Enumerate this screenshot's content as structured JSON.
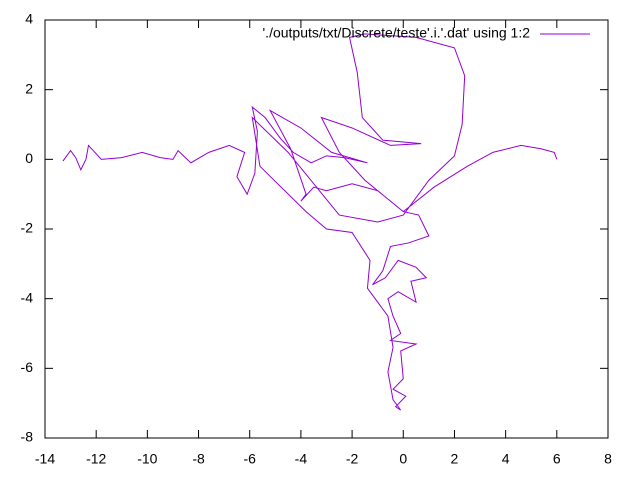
{
  "chart_data": {
    "type": "line",
    "x": [
      -13.3,
      -13,
      -12.8,
      -12.6,
      -12.4,
      -12.3,
      -11.8,
      -11,
      -10.2,
      -9.5,
      -9,
      -8.8,
      -8.3,
      -7.6,
      -6.8,
      -6.2,
      -6.5,
      -6.1,
      -5.8,
      -5.7,
      -5.9,
      -5.4,
      -4.8,
      -4.3,
      -3.6,
      -3,
      -2.3,
      -1.4,
      -2.8,
      -4,
      -5.2,
      -4.4,
      -3.8,
      -4,
      -3.5,
      -3,
      -2,
      -1,
      0,
      0.6,
      1,
      0.2,
      -0.5,
      -0.8,
      -1.2,
      -0.7,
      -0.2,
      0.5,
      0.9,
      0.3,
      0.5,
      -0.2,
      -0.6,
      -0.4,
      -0.1,
      -0.5,
      0.5,
      -0.1,
      0,
      -0.4,
      0.1,
      -0.3,
      -0.1,
      -0.4,
      -0.6,
      -0.4,
      -0.6,
      -1.4,
      -1.3,
      -2,
      -3,
      -3.8,
      -5.6,
      -5.9,
      -4.5,
      -2.5,
      -1,
      0,
      1,
      2,
      2.3,
      2.4,
      2,
      0.5,
      -1.5,
      -2.1,
      -1.8,
      -1.6,
      -0.8,
      0.7,
      -0.5,
      -2,
      -3.2,
      -2.5,
      -1.5,
      0,
      1.2,
      2.5,
      3.5,
      4.6,
      5.4,
      5.9,
      6
    ],
    "series": [
      {
        "name": "'./outputs/txt/Discrete/teste'.i.'.dat' using 1:2",
        "color": "#9400d3",
        "values": [
          -0.05,
          0.25,
          0.05,
          -0.3,
          0,
          0.4,
          0,
          0.05,
          0.2,
          0.05,
          0,
          0.25,
          -0.1,
          0.2,
          0.4,
          0.2,
          -0.5,
          -1,
          -0.4,
          0.8,
          1.5,
          1.2,
          0.6,
          0.2,
          -0.1,
          0.1,
          0.05,
          -0.1,
          0.2,
          0.9,
          1.4,
          0.3,
          -1,
          -1.2,
          -0.8,
          -0.9,
          -0.7,
          -0.9,
          -1.5,
          -1.6,
          -2.2,
          -2.4,
          -2.5,
          -3.2,
          -3.6,
          -3.4,
          -2.9,
          -3.1,
          -3.4,
          -3.5,
          -4.1,
          -3.8,
          -4,
          -4.5,
          -5,
          -5.2,
          -5.3,
          -5.5,
          -6.3,
          -6.6,
          -6.8,
          -7.1,
          -7.2,
          -6.9,
          -6.1,
          -5.4,
          -4.5,
          -3.7,
          -2.9,
          -2.1,
          -2,
          -1.5,
          -0.2,
          1.2,
          0.2,
          -1.6,
          -1.8,
          -1.6,
          -0.6,
          0.1,
          1,
          2.4,
          3.2,
          3.5,
          3.6,
          3.5,
          2.5,
          1.2,
          0.55,
          0.45,
          0.4,
          0.9,
          1.2,
          0.2,
          -0.6,
          -1.5,
          -0.8,
          -0.2,
          0.2,
          0.4,
          0.3,
          0.2,
          0
        ]
      }
    ],
    "xlim": [
      -14,
      8
    ],
    "xticks": [
      -14,
      -12,
      -10,
      -8,
      -6,
      -4,
      -2,
      0,
      2,
      4,
      6,
      8
    ],
    "ylim": [
      -8,
      4
    ],
    "yticks": [
      -8,
      -6,
      -4,
      -2,
      0,
      2,
      4
    ],
    "legend": "top right"
  }
}
